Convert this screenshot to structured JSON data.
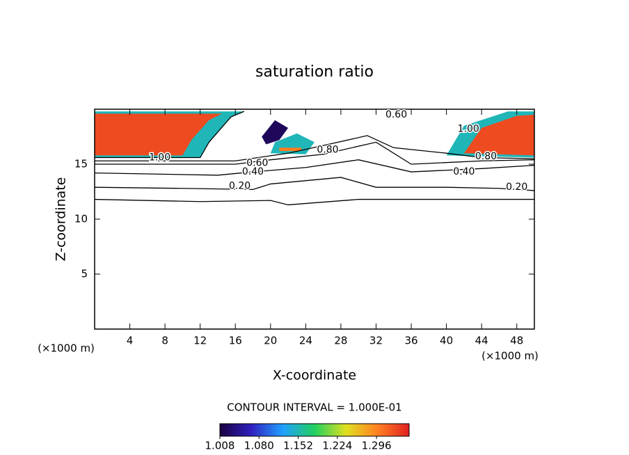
{
  "chart_data": {
    "type": "contour",
    "title": "saturation ratio",
    "x_label": "X-coordinate",
    "y_label": "Z-coordinate",
    "x_unit": "(×1000 m)",
    "y_unit": "(×1000 m)",
    "xlim": [
      0,
      50
    ],
    "ylim": [
      0,
      20
    ],
    "xticks": [
      4,
      8,
      12,
      16,
      20,
      24,
      28,
      32,
      36,
      40,
      44,
      48
    ],
    "yticks": [
      5,
      10,
      15
    ],
    "contour_interval_text": "CONTOUR INTERVAL = 1.000E-01",
    "line_color": "#000000",
    "contours": [
      {
        "level": 0.1,
        "x": [
          0,
          12,
          20,
          22,
          30,
          50
        ],
        "y": [
          11.8,
          11.6,
          11.7,
          11.3,
          11.8,
          11.8
        ]
      },
      {
        "level": 0.2,
        "label": "0.20",
        "label_x": [
          16.5,
          48
        ],
        "label_y": [
          13,
          12.9
        ],
        "x": [
          0,
          10,
          18,
          20,
          24,
          28,
          32,
          40,
          46,
          50
        ],
        "y": [
          12.9,
          12.8,
          12.7,
          13.2,
          13.5,
          13.8,
          12.9,
          12.9,
          12.8,
          12.6
        ]
      },
      {
        "level": 0.4,
        "label": "0.40",
        "label_x": [
          18,
          42
        ],
        "label_y": [
          14.3,
          14.3
        ],
        "x": [
          0,
          14,
          18,
          24,
          30,
          36,
          44,
          50
        ],
        "y": [
          14.2,
          14,
          14.3,
          14.7,
          15.4,
          14.3,
          14.6,
          14.9
        ]
      },
      {
        "level": 0.6,
        "label": "0.60",
        "label_x": [
          18.5,
          34.3
        ],
        "label_y": [
          15.1,
          19.5
        ],
        "x": [
          0,
          16,
          20,
          26,
          32,
          36,
          44,
          50
        ],
        "y": [
          15,
          15,
          15.4,
          15.9,
          17,
          15,
          15.3,
          15.4
        ]
      },
      {
        "level": 0.8,
        "label": "0.80",
        "label_x": [
          26.5,
          44.5
        ],
        "label_y": [
          16.3,
          15.7
        ],
        "x": [
          0,
          16,
          22,
          26,
          31,
          34,
          40,
          44,
          50
        ],
        "y": [
          15.3,
          15.3,
          16,
          16.7,
          17.6,
          16.5,
          16,
          15.6,
          15.5
        ]
      },
      {
        "level": 1.0,
        "label": "1.00",
        "label_x": [
          7.4,
          42.5
        ],
        "label_y": [
          15.6,
          18.2
        ],
        "x": [
          0,
          12,
          13,
          15.5,
          17
        ],
        "y": [
          15.6,
          15.6,
          17,
          19.3,
          19.8
        ]
      }
    ],
    "shaded": [
      {
        "level": 1.15,
        "x": [
          0,
          12,
          13,
          15.5,
          17,
          0
        ],
        "y": [
          15.6,
          15.6,
          17,
          19.3,
          19.8,
          19.8
        ]
      },
      {
        "level": 1.33,
        "x": [
          0,
          10,
          11,
          13,
          14.5,
          0
        ],
        "y": [
          15.8,
          15.8,
          17.2,
          19,
          19.6,
          19.6
        ]
      },
      {
        "level": 1.15,
        "x": [
          40,
          50,
          50,
          47,
          42
        ],
        "y": [
          15.8,
          15.6,
          19.8,
          19.8,
          18.5
        ]
      },
      {
        "level": 1.33,
        "x": [
          42,
          50,
          50,
          48,
          44
        ],
        "y": [
          16,
          15.8,
          19.5,
          19.4,
          18.3
        ]
      },
      {
        "level": 1.02,
        "x": [
          19,
          20.5,
          22,
          21,
          19.5
        ],
        "y": [
          17.5,
          19,
          18.3,
          17.2,
          16.8
        ]
      },
      {
        "level": 1.15,
        "x": [
          20,
          24,
          25,
          23,
          20.5
        ],
        "y": [
          16,
          15.9,
          17,
          17.8,
          17
        ]
      },
      {
        "level": 1.3,
        "x": [
          21,
          23.5,
          23.5,
          21
        ],
        "y": [
          16.2,
          16.2,
          16.5,
          16.5
        ]
      }
    ],
    "colorbar": {
      "lim": [
        1.008,
        1.356
      ],
      "colors": [
        "#1a0040",
        "#3020c0",
        "#20a0ff",
        "#20d060",
        "#e0e020",
        "#ff8020",
        "#e02020"
      ],
      "ticks": [
        {
          "value": 1.008,
          "label": "1.008"
        },
        {
          "value": 1.08,
          "label": "1.080"
        },
        {
          "value": 1.152,
          "label": "1.152"
        },
        {
          "value": 1.224,
          "label": "1.224"
        },
        {
          "value": 1.296,
          "label": "1.296"
        }
      ]
    }
  }
}
